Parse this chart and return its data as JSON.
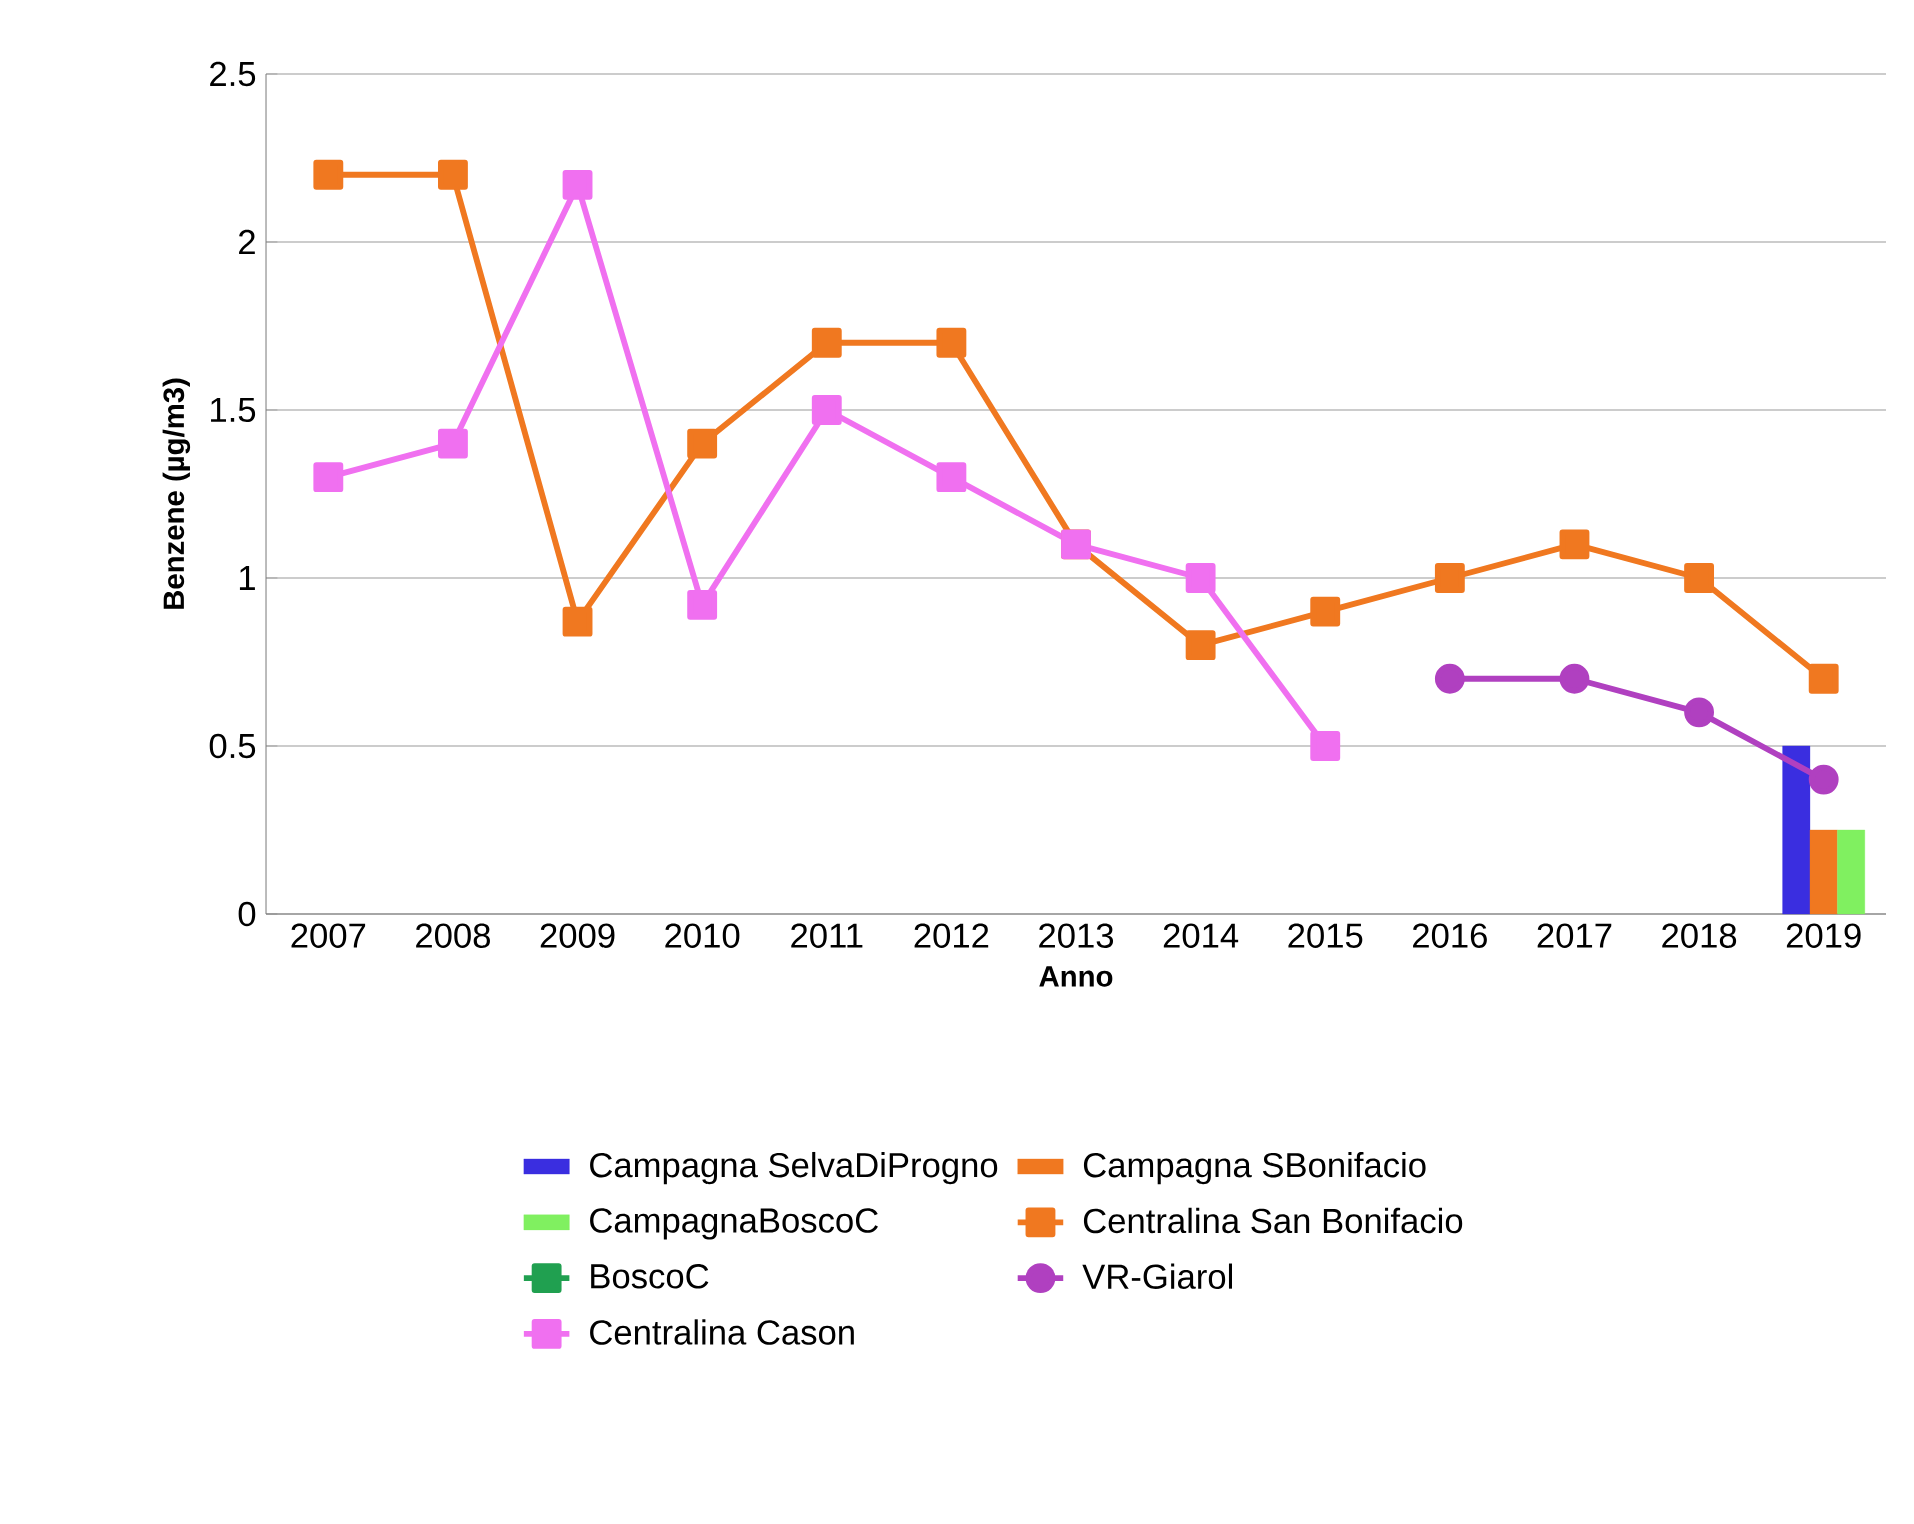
{
  "chart_data": {
    "type": "bar",
    "xlabel": "Anno",
    "ylabel": "Benzene (µg/m3)",
    "categories": [
      "2007",
      "2008",
      "2009",
      "2010",
      "2011",
      "2012",
      "2013",
      "2014",
      "2015",
      "2016",
      "2017",
      "2018",
      "2019"
    ],
    "ylim": [
      0,
      2.5
    ],
    "yticks": [
      0,
      0.5,
      1,
      1.5,
      2,
      2.5
    ],
    "grid": "y",
    "legend": "bottom",
    "series": [
      {
        "name": "Campagna SelvaDiProgno",
        "color": "#3a2ee0",
        "values": [
          null,
          null,
          null,
          null,
          null,
          null,
          null,
          null,
          null,
          null,
          null,
          null,
          0.5
        ]
      },
      {
        "name": "Campagna SBonifacio",
        "color": "#f07820",
        "values": [
          null,
          null,
          null,
          null,
          null,
          null,
          null,
          null,
          null,
          null,
          null,
          null,
          0.25
        ]
      },
      {
        "name": "CampagnaBoscoC",
        "color": "#80f060",
        "values": [
          null,
          null,
          null,
          null,
          null,
          null,
          null,
          null,
          null,
          null,
          null,
          null,
          0.25
        ]
      },
      {
        "name": "Centralina San Bonifacio",
        "type": "line",
        "color": "#f07820",
        "marker": "square",
        "line_style": "solid",
        "values": [
          2.2,
          2.2,
          0.87,
          1.4,
          1.7,
          1.7,
          1.1,
          0.8,
          0.9,
          1.0,
          1.1,
          1.0,
          0.7
        ]
      },
      {
        "name": "BoscoC",
        "type": "line",
        "color": "#20a050",
        "marker": "square",
        "line_style": "solid",
        "values": [
          null,
          null,
          null,
          null,
          null,
          null,
          null,
          null,
          null,
          null,
          null,
          null,
          null
        ]
      },
      {
        "name": "VR-Giarol",
        "type": "line",
        "color": "#b040c0",
        "marker": "circle",
        "line_style": "solid",
        "values": [
          null,
          null,
          null,
          null,
          null,
          null,
          null,
          null,
          null,
          0.7,
          0.7,
          0.6,
          0.4
        ]
      },
      {
        "name": "Centralina Cason",
        "type": "line",
        "color": "#f070f0",
        "marker": "square",
        "line_style": "solid",
        "values": [
          1.3,
          1.4,
          2.17,
          0.92,
          1.5,
          1.3,
          1.1,
          1.0,
          0.5,
          null,
          null,
          null,
          null
        ]
      }
    ]
  }
}
